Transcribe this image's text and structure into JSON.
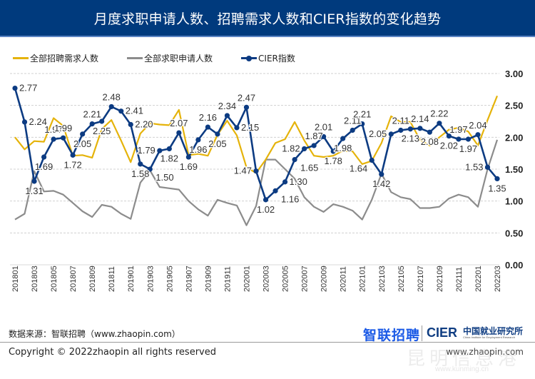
{
  "header": {
    "title": "月度求职申请人数、招聘需求人数和CIER指数的变化趋势"
  },
  "legend": [
    {
      "label": "全部招聘需求人数",
      "color": "#e5b30a",
      "marker": false
    },
    {
      "label": "全部求职申请人数",
      "color": "#8c8c8c",
      "marker": false
    },
    {
      "label": "CIER指数",
      "color": "#0c3b82",
      "marker": true
    }
  ],
  "footer": {
    "source": "数据来源：智联招聘（www.zhaopin.com）",
    "copyright": "Copyright ©  2022zhaopin all rights reserved",
    "website": "www.zhaopin.com",
    "logo_zhilian": "智联招聘",
    "logo_cier": "CIER",
    "logo_cier_cn": "中国就业研究所",
    "logo_cier_en": "China Institute for Employment Research",
    "watermark": "昆明信息港",
    "watermark_sub": "www.kunming.cn"
  },
  "chart_data": {
    "type": "line",
    "title": "月度求职申请人数、招聘需求人数和CIER指数的变化趋势",
    "xlabel": "",
    "ylabel": "",
    "ylim": [
      0,
      3
    ],
    "yticks": [
      "0.00",
      "0.50",
      "1.00",
      "1.50",
      "2.00",
      "2.50",
      "3.00"
    ],
    "ytick_values": [
      0,
      0.5,
      1,
      1.5,
      2,
      2.5,
      3
    ],
    "y_axis_side": "right",
    "grid": true,
    "legend_position": "top-left",
    "x": [
      "201801",
      "201802",
      "201803",
      "201804",
      "201805",
      "201806",
      "201807",
      "201808",
      "201809",
      "201810",
      "201811",
      "201812",
      "201901",
      "201902",
      "201903",
      "201904",
      "201905",
      "201906",
      "201907",
      "201908",
      "201909",
      "201910",
      "201911",
      "201912",
      "202001",
      "202002",
      "202003",
      "202004",
      "202005",
      "202006",
      "202007",
      "202008",
      "202009",
      "202010",
      "202011",
      "202012",
      "202101",
      "202102",
      "202103",
      "202104",
      "202105",
      "202106",
      "202107",
      "202108",
      "202109",
      "202110",
      "202111",
      "202112",
      "202201",
      "202202",
      "202203"
    ],
    "xtick_labels": [
      "201801",
      "201803",
      "201805",
      "201807",
      "201809",
      "201811",
      "201901",
      "201903",
      "201905",
      "201907",
      "201909",
      "201911",
      "202001",
      "202003",
      "202005",
      "202007",
      "202009",
      "202011",
      "202101",
      "202103",
      "202105",
      "202107",
      "202109",
      "202111",
      "202201",
      "202203"
    ],
    "series": [
      {
        "name": "全部招聘需求人数",
        "color": "#e5b30a",
        "values": [
          2.0,
          1.81,
          1.94,
          1.93,
          2.3,
          2.18,
          1.71,
          1.72,
          1.68,
          2.13,
          2.27,
          1.95,
          1.61,
          2.06,
          2.22,
          2.2,
          2.19,
          2.43,
          1.72,
          1.74,
          1.71,
          2.04,
          2.26,
          2.03,
          1.53,
          1.44,
          1.65,
          1.91,
          1.97,
          2.24,
          1.95,
          1.71,
          1.69,
          1.71,
          1.79,
          1.78,
          1.58,
          1.63,
          1.91,
          2.33,
          2.24,
          2.24,
          1.96,
          1.87,
          2.0,
          2.12,
          2.15,
          2.09,
          1.87,
          2.27,
          2.65
        ]
      },
      {
        "name": "全部求职申请人数",
        "color": "#8c8c8c",
        "values": [
          0.71,
          0.8,
          1.47,
          1.15,
          1.16,
          1.1,
          0.97,
          0.84,
          0.75,
          0.94,
          0.91,
          0.8,
          0.72,
          1.29,
          1.48,
          1.22,
          1.2,
          1.18,
          1.0,
          0.87,
          0.77,
          1.02,
          0.97,
          0.93,
          0.62,
          0.92,
          1.65,
          1.65,
          1.5,
          1.35,
          1.06,
          0.91,
          0.83,
          0.95,
          0.91,
          0.85,
          0.71,
          1.02,
          1.43,
          1.14,
          1.06,
          1.03,
          0.89,
          0.89,
          0.91,
          1.04,
          1.1,
          1.06,
          0.91,
          1.5,
          1.96
        ]
      },
      {
        "name": "CIER指数",
        "color": "#0c3b82",
        "marker": "circle",
        "values": [
          2.77,
          2.24,
          1.31,
          1.69,
          1.97,
          1.99,
          1.72,
          2.05,
          2.21,
          2.25,
          2.48,
          2.41,
          2.2,
          1.58,
          1.5,
          1.79,
          1.82,
          2.07,
          1.69,
          1.96,
          2.16,
          2.05,
          2.34,
          2.15,
          2.47,
          1.47,
          1.02,
          1.16,
          1.3,
          1.65,
          1.82,
          1.87,
          2.01,
          1.78,
          1.98,
          2.11,
          2.21,
          1.64,
          1.42,
          2.05,
          2.11,
          2.13,
          2.14,
          2.08,
          2.22,
          2.02,
          1.97,
          1.97,
          2.04,
          1.53,
          1.35
        ],
        "data_labels": [
          {
            "i": 0,
            "text": "2.77",
            "pos": "right"
          },
          {
            "i": 1,
            "text": "2.24",
            "pos": "right"
          },
          {
            "i": 2,
            "text": "1.31",
            "pos": "below"
          },
          {
            "i": 3,
            "text": "1.69",
            "pos": "below"
          },
          {
            "i": 4,
            "text": "1.97",
            "pos": "above"
          },
          {
            "i": 5,
            "text": "1.99",
            "pos": "above"
          },
          {
            "i": 6,
            "text": "1.72",
            "pos": "below"
          },
          {
            "i": 7,
            "text": "2.05",
            "pos": "below"
          },
          {
            "i": 8,
            "text": "2.21",
            "pos": "above"
          },
          {
            "i": 9,
            "text": "2.25",
            "pos": "below"
          },
          {
            "i": 10,
            "text": "2.48",
            "pos": "above"
          },
          {
            "i": 11,
            "text": "2.41",
            "pos": "right"
          },
          {
            "i": 12,
            "text": "2.20",
            "pos": "right"
          },
          {
            "i": 13,
            "text": "1.58",
            "pos": "below"
          },
          {
            "i": 14,
            "text": "1.50",
            "pos": "below-right"
          },
          {
            "i": 15,
            "text": "1.79",
            "pos": "left"
          },
          {
            "i": 16,
            "text": "1.82",
            "pos": "below"
          },
          {
            "i": 17,
            "text": "2.07",
            "pos": "above"
          },
          {
            "i": 18,
            "text": "1.69",
            "pos": "below"
          },
          {
            "i": 19,
            "text": "1.96",
            "pos": "below"
          },
          {
            "i": 20,
            "text": "2.16",
            "pos": "above"
          },
          {
            "i": 21,
            "text": "2.05",
            "pos": "below"
          },
          {
            "i": 22,
            "text": "2.34",
            "pos": "above"
          },
          {
            "i": 23,
            "text": "2.15",
            "pos": "right"
          },
          {
            "i": 24,
            "text": "2.47",
            "pos": "above"
          },
          {
            "i": 25,
            "text": "1.47",
            "pos": "left"
          },
          {
            "i": 26,
            "text": "1.02",
            "pos": "below"
          },
          {
            "i": 27,
            "text": "1.16",
            "pos": "below-right"
          },
          {
            "i": 28,
            "text": "1.30",
            "pos": "right"
          },
          {
            "i": 29,
            "text": "1.65",
            "pos": "below-right"
          },
          {
            "i": 30,
            "text": "1.82",
            "pos": "left"
          },
          {
            "i": 31,
            "text": "1.87",
            "pos": "above"
          },
          {
            "i": 32,
            "text": "2.01",
            "pos": "above"
          },
          {
            "i": 33,
            "text": "1.78",
            "pos": "below"
          },
          {
            "i": 34,
            "text": "1.98",
            "pos": "below"
          },
          {
            "i": 35,
            "text": "2.11",
            "pos": "above"
          },
          {
            "i": 36,
            "text": "2.21",
            "pos": "above"
          },
          {
            "i": 37,
            "text": "1.64",
            "pos": "below-left"
          },
          {
            "i": 38,
            "text": "1.42",
            "pos": "below"
          },
          {
            "i": 39,
            "text": "2.05",
            "pos": "left"
          },
          {
            "i": 40,
            "text": "2.11",
            "pos": "above"
          },
          {
            "i": 41,
            "text": "2.13",
            "pos": "below"
          },
          {
            "i": 42,
            "text": "2.14",
            "pos": "above"
          },
          {
            "i": 43,
            "text": "2.08",
            "pos": "below"
          },
          {
            "i": 44,
            "text": "2.22",
            "pos": "above"
          },
          {
            "i": 45,
            "text": "2.02",
            "pos": "below"
          },
          {
            "i": 46,
            "text": "1.97",
            "pos": "above"
          },
          {
            "i": 47,
            "text": "1.97",
            "pos": "below"
          },
          {
            "i": 48,
            "text": "2.04",
            "pos": "above"
          },
          {
            "i": 49,
            "text": "1.53",
            "pos": "left"
          },
          {
            "i": 50,
            "text": "1.35",
            "pos": "below"
          }
        ]
      }
    ]
  }
}
